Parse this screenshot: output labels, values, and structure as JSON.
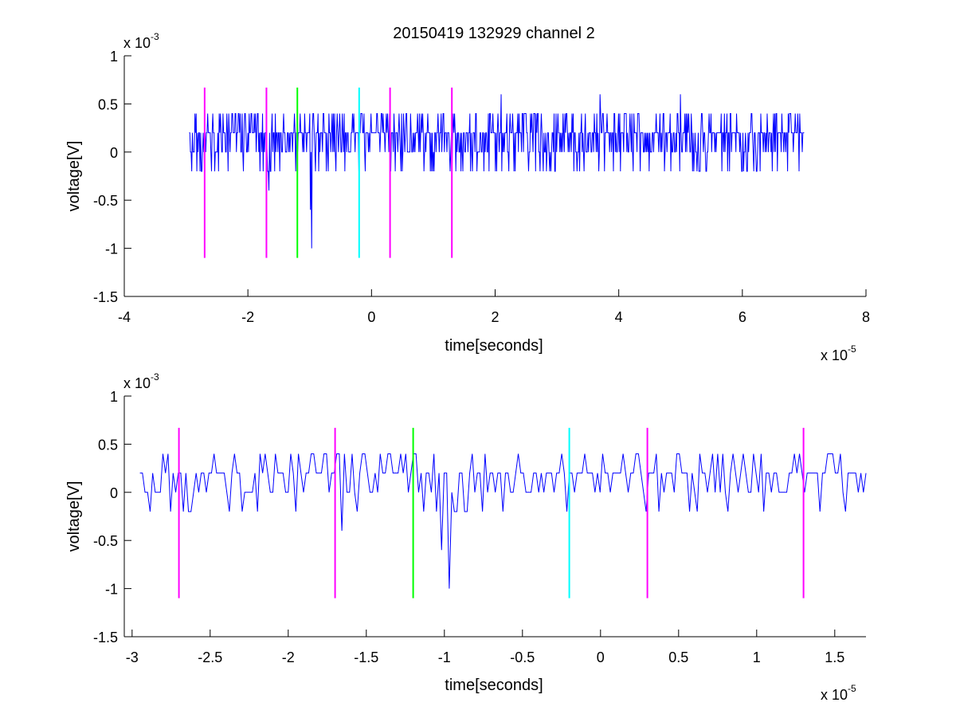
{
  "title": "20150419 132929 channel 2",
  "chart_data": [
    {
      "type": "line",
      "xlabel": "time[seconds]",
      "ylabel": "voltage[V]",
      "x_exponent_label": "x 10",
      "x_exponent_power": "-5",
      "y_exponent_label": "x 10",
      "y_exponent_power": "-3",
      "xlim": [
        -4,
        8
      ],
      "ylim": [
        -1.5,
        1
      ],
      "x_ticks": [
        "-4",
        "-2",
        "0",
        "2",
        "4",
        "6",
        "8"
      ],
      "x_tick_values": [
        -4,
        -2,
        0,
        2,
        4,
        6,
        8
      ],
      "y_ticks": [
        "-1.5",
        "-1",
        "-0.5",
        "0",
        "0.5",
        "1"
      ],
      "y_tick_values": [
        -1.5,
        -1,
        -0.5,
        0,
        0.5,
        1
      ],
      "series": [
        {
          "style": "noise",
          "color": "#0000ff",
          "x_start": -2.95,
          "x_end": 7.0,
          "baseline": 0.2,
          "levels": [
            -0.2,
            0,
            0.2,
            0.4
          ],
          "spikes": [
            {
              "x": -1.66,
              "y": -0.4
            },
            {
              "x": -0.97,
              "y": -1.0
            },
            {
              "x": -0.99,
              "y": -0.6
            },
            {
              "x": 2.1,
              "y": 0.6
            },
            {
              "x": 3.7,
              "y": 0.6
            },
            {
              "x": 5.0,
              "y": 0.6
            }
          ]
        }
      ],
      "markers": [
        {
          "x": -2.7,
          "y0": -1.1,
          "y1": 0.67,
          "color": "#ff00ff"
        },
        {
          "x": -1.7,
          "y0": -1.1,
          "y1": 0.67,
          "color": "#ff00ff"
        },
        {
          "x": -1.2,
          "y0": -1.1,
          "y1": 0.67,
          "color": "#00ff00"
        },
        {
          "x": -0.2,
          "y0": -1.1,
          "y1": 0.67,
          "color": "#00ffff"
        },
        {
          "x": 0.3,
          "y0": -1.1,
          "y1": 0.67,
          "color": "#ff00ff"
        },
        {
          "x": 1.3,
          "y0": -1.1,
          "y1": 0.67,
          "color": "#ff00ff"
        }
      ]
    },
    {
      "type": "line",
      "xlabel": "time[seconds]",
      "ylabel": "voltage[V]",
      "x_exponent_label": "x 10",
      "x_exponent_power": "-5",
      "y_exponent_label": "x 10",
      "y_exponent_power": "-3",
      "xlim": [
        -3.05,
        1.7
      ],
      "ylim": [
        -1.5,
        1
      ],
      "x_ticks": [
        "-3",
        "-2.5",
        "-2",
        "-1.5",
        "-1",
        "-0.5",
        "0",
        "0.5",
        "1",
        "1.5"
      ],
      "x_tick_values": [
        -3,
        -2.5,
        -2,
        -1.5,
        -1,
        -0.5,
        0,
        0.5,
        1,
        1.5
      ],
      "y_ticks": [
        "-1.5",
        "-1",
        "-0.5",
        "0",
        "0.5",
        "1"
      ],
      "y_tick_values": [
        -1.5,
        -1,
        -0.5,
        0,
        0.5,
        1
      ],
      "series": [
        {
          "style": "noise",
          "color": "#0000ff",
          "x_start": -2.95,
          "x_end": 1.7,
          "baseline": 0.2,
          "levels": [
            -0.2,
            0,
            0.2,
            0.4
          ],
          "spikes": [
            {
              "x": -1.66,
              "y": -0.4
            },
            {
              "x": -1.01,
              "y": -0.6
            },
            {
              "x": -0.97,
              "y": -1.0
            }
          ]
        }
      ],
      "markers": [
        {
          "x": -2.7,
          "y0": -1.1,
          "y1": 0.67,
          "color": "#ff00ff"
        },
        {
          "x": -1.7,
          "y0": -1.1,
          "y1": 0.67,
          "color": "#ff00ff"
        },
        {
          "x": -1.2,
          "y0": -1.1,
          "y1": 0.67,
          "color": "#00ff00"
        },
        {
          "x": -0.2,
          "y0": -1.1,
          "y1": 0.67,
          "color": "#00ffff"
        },
        {
          "x": 0.3,
          "y0": -1.1,
          "y1": 0.67,
          "color": "#ff00ff"
        },
        {
          "x": 1.3,
          "y0": -1.1,
          "y1": 0.67,
          "color": "#ff00ff"
        }
      ]
    }
  ]
}
